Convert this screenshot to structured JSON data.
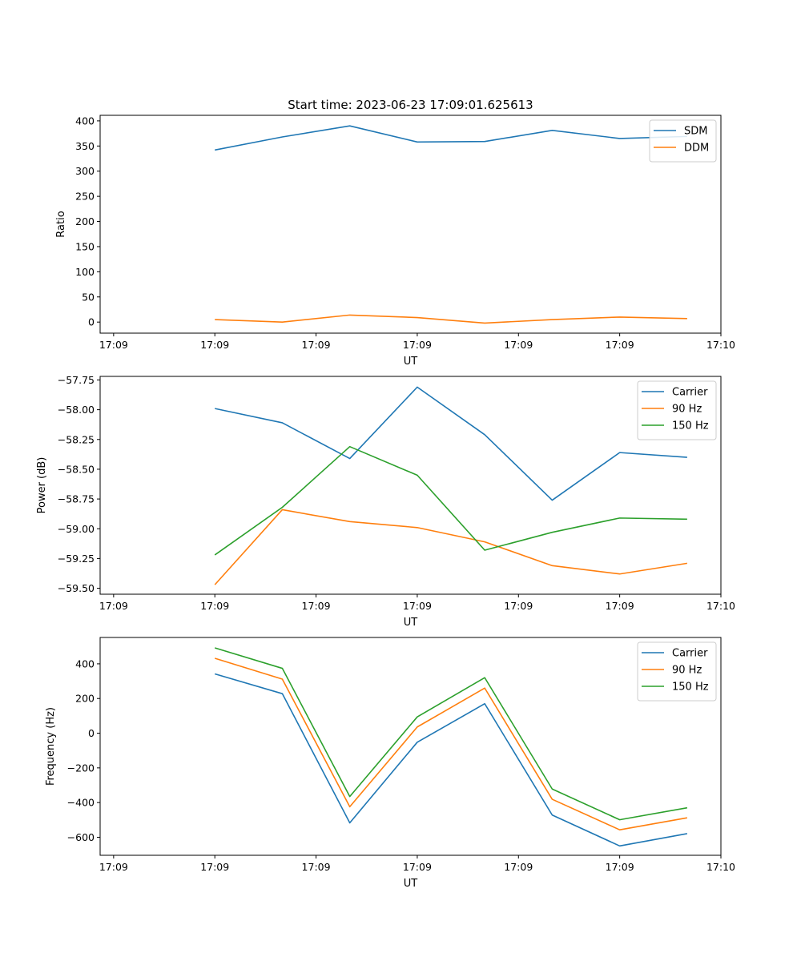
{
  "figure": {
    "title": "Start time: 2023-06-23 17:09:01.625613"
  },
  "chart_data": [
    {
      "type": "line",
      "title": "Start time: 2023-06-23 17:09:01.625613",
      "xlabel": "UT",
      "ylabel": "Ratio",
      "x_tick_labels": [
        "17:09",
        "17:09",
        "17:09",
        "17:09",
        "17:09",
        "17:09",
        "17:10"
      ],
      "y_ticks": [
        0,
        50,
        100,
        150,
        200,
        250,
        300,
        350,
        400
      ],
      "ylim": [
        -22,
        411
      ],
      "x": [
        1,
        2,
        3,
        4,
        5,
        6,
        7,
        8
      ],
      "xlim": [
        -0.7,
        8.5
      ],
      "x_tick_positions": [
        -0.5,
        1,
        2.5,
        4,
        5.5,
        7,
        8.5
      ],
      "legend_position": "top-right",
      "series": [
        {
          "name": "SDM",
          "color": "#1f77b4",
          "values": [
            342,
            368,
            390,
            358,
            359,
            381,
            365,
            369
          ]
        },
        {
          "name": "DDM",
          "color": "#ff7f0e",
          "values": [
            5,
            0,
            14,
            9,
            -2,
            5,
            10,
            7
          ]
        }
      ]
    },
    {
      "type": "line",
      "xlabel": "UT",
      "ylabel": "Power (dB)",
      "x_tick_labels": [
        "17:09",
        "17:09",
        "17:09",
        "17:09",
        "17:09",
        "17:09",
        "17:10"
      ],
      "y_ticks": [
        -57.75,
        -58.0,
        -58.25,
        -58.5,
        -58.75,
        -59.0,
        -59.25,
        -59.5
      ],
      "y_tick_labels": [
        "−57.75",
        "−58.00",
        "−58.25",
        "−58.50",
        "−58.75",
        "−59.00",
        "−59.25",
        "−59.50"
      ],
      "ylim": [
        -59.55,
        -57.72
      ],
      "x": [
        1,
        2,
        3,
        4,
        5,
        6,
        7,
        8
      ],
      "xlim": [
        -0.7,
        8.5
      ],
      "x_tick_positions": [
        -0.5,
        1,
        2.5,
        4,
        5.5,
        7,
        8.5
      ],
      "legend_position": "top-right",
      "series": [
        {
          "name": "Carrier",
          "color": "#1f77b4",
          "values": [
            -57.99,
            -58.11,
            -58.41,
            -57.81,
            -58.21,
            -58.76,
            -58.36,
            -58.4
          ]
        },
        {
          "name": "90 Hz",
          "color": "#ff7f0e",
          "values": [
            -59.47,
            -58.84,
            -58.94,
            -58.99,
            -59.11,
            -59.31,
            -59.38,
            -59.29
          ]
        },
        {
          "name": "150 Hz",
          "color": "#2ca02c",
          "values": [
            -59.22,
            -58.82,
            -58.31,
            -58.55,
            -59.18,
            -59.03,
            -58.91,
            -58.92
          ]
        }
      ]
    },
    {
      "type": "line",
      "xlabel": "UT",
      "ylabel": "Frequency (Hz)",
      "x_tick_labels": [
        "17:09",
        "17:09",
        "17:09",
        "17:09",
        "17:09",
        "17:09",
        "17:10"
      ],
      "y_ticks": [
        400,
        200,
        0,
        -200,
        -400,
        -600
      ],
      "y_tick_labels": [
        "400",
        "200",
        "0",
        "−200",
        "−400",
        "−600"
      ],
      "ylim": [
        -704,
        552
      ],
      "x": [
        1,
        2,
        3,
        4,
        5,
        6,
        7,
        8
      ],
      "xlim": [
        -0.7,
        8.5
      ],
      "x_tick_positions": [
        -0.5,
        1,
        2.5,
        4,
        5.5,
        7,
        8.5
      ],
      "legend_position": "top-right",
      "series": [
        {
          "name": "Carrier",
          "color": "#1f77b4",
          "values": [
            342,
            228,
            -517,
            -52,
            170,
            -472,
            -650,
            -579
          ]
        },
        {
          "name": "90 Hz",
          "color": "#ff7f0e",
          "values": [
            432,
            312,
            -424,
            36,
            260,
            -381,
            -557,
            -488
          ]
        },
        {
          "name": "150 Hz",
          "color": "#2ca02c",
          "values": [
            492,
            374,
            -365,
            94,
            320,
            -322,
            -499,
            -430
          ]
        }
      ]
    }
  ]
}
